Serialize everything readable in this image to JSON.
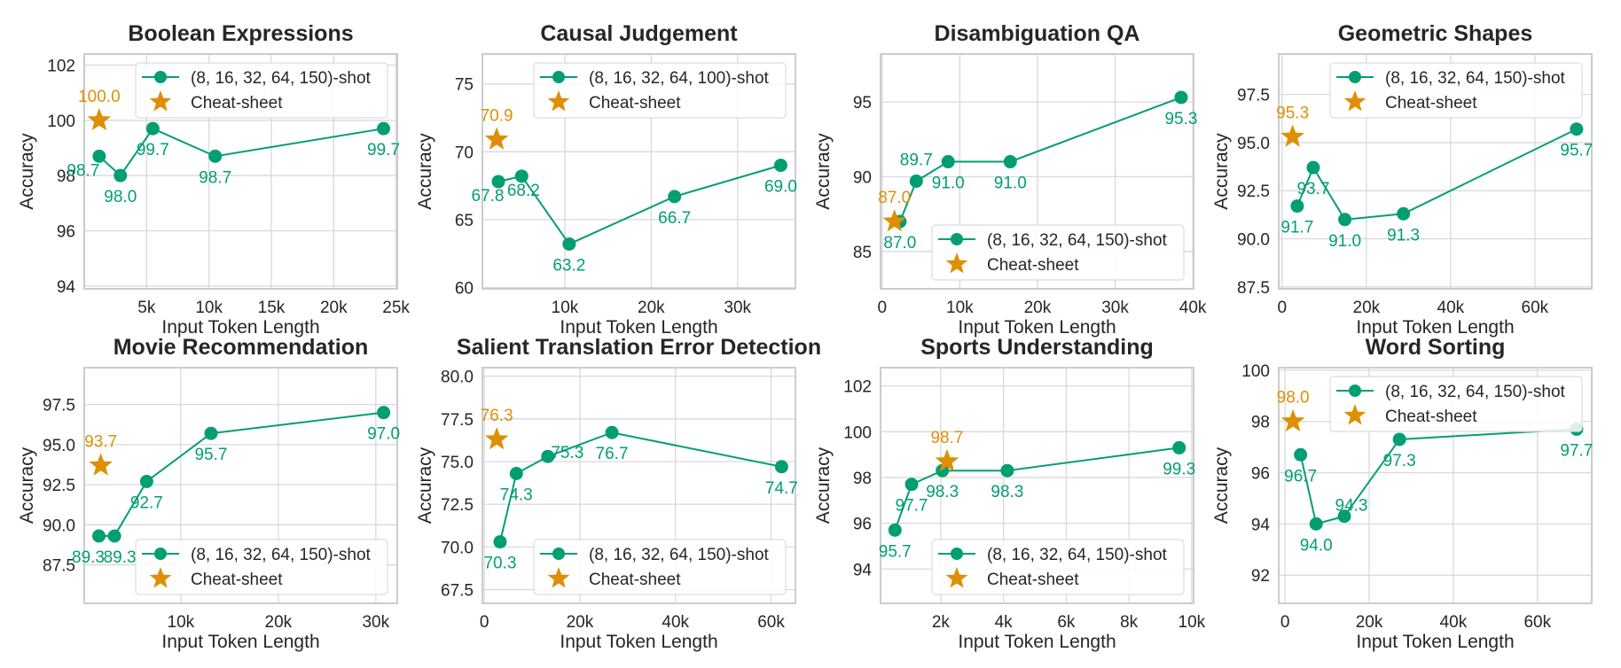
{
  "colors": {
    "series": "#029e73",
    "cheatsheet": "#de8f05",
    "grid": "#d9d9d9",
    "frame": "#cccccc",
    "text": "#262626"
  },
  "chart_data": [
    {
      "type": "line",
      "title": "Boolean Expressions",
      "xlabel": "Input Token Length",
      "ylabel": "Accuracy",
      "xlim": [
        0,
        25100
      ],
      "ylim": [
        93.9,
        102.4
      ],
      "xticks": [
        5000,
        10000,
        15000,
        20000,
        25000
      ],
      "xtick_labels": [
        "5k",
        "10k",
        "15k",
        "20k",
        "25k"
      ],
      "yticks": [
        94,
        96,
        98,
        100,
        102
      ],
      "ytick_labels": [
        "94",
        "96",
        "98",
        "100",
        "102"
      ],
      "grid": true,
      "legend": "upper-right",
      "series": [
        {
          "name": "(8, 16, 32, 64, 150)-shot",
          "x": [
            1200,
            2900,
            5500,
            10500,
            24000
          ],
          "y": [
            98.7,
            98.0,
            99.7,
            98.7,
            99.7
          ],
          "labels": [
            "98.7",
            "98.0",
            "99.7",
            "98.7",
            "99.7"
          ]
        }
      ],
      "cheatsheet": {
        "name": "Cheat-sheet",
        "x": 1200,
        "y": 100.0,
        "label": "100.0"
      }
    },
    {
      "type": "line",
      "title": "Causal Judgement",
      "xlabel": "Input Token Length",
      "ylabel": "Accuracy",
      "xlim": [
        450,
        36700
      ],
      "ylim": [
        59.9,
        77.2
      ],
      "xticks": [
        10000,
        20000,
        30000
      ],
      "xtick_labels": [
        "10k",
        "20k",
        "30k"
      ],
      "yticks": [
        60,
        65,
        70,
        75
      ],
      "ytick_labels": [
        "60",
        "65",
        "70",
        "75"
      ],
      "grid": true,
      "legend": "upper-right",
      "series": [
        {
          "name": "(8, 16, 32, 64, 100)-shot",
          "x": [
            2300,
            5000,
            10500,
            22700,
            35000
          ],
          "y": [
            67.8,
            68.2,
            63.2,
            66.7,
            69.0
          ],
          "labels": [
            "67.8",
            "68.2",
            "63.2",
            "66.7",
            "69.0"
          ]
        }
      ],
      "cheatsheet": {
        "name": "Cheat-sheet",
        "x": 2100,
        "y": 70.9,
        "label": "70.9"
      }
    },
    {
      "type": "line",
      "title": "Disambiguation QA",
      "xlabel": "Input Token Length",
      "ylabel": "Accuracy",
      "xlim": [
        -200,
        40100
      ],
      "ylim": [
        82.5,
        98.2
      ],
      "xticks": [
        0,
        10000,
        20000,
        30000,
        40000
      ],
      "xtick_labels": [
        "0",
        "10k",
        "20k",
        "30k",
        "40k"
      ],
      "yticks": [
        85,
        90,
        95
      ],
      "ytick_labels": [
        "85",
        "90",
        "95"
      ],
      "grid": true,
      "legend": "lower-right",
      "series": [
        {
          "name": "(8, 16, 32, 64, 150)-shot",
          "x": [
            2300,
            4400,
            8500,
            16500,
            38500
          ],
          "y": [
            87.0,
            89.7,
            91.0,
            91.0,
            95.3
          ],
          "labels": [
            "87.0",
            "89.7",
            "91.0",
            "91.0",
            "95.3"
          ]
        }
      ],
      "cheatsheet": {
        "name": "Cheat-sheet",
        "x": 1600,
        "y": 87.0,
        "label": "87.0"
      }
    },
    {
      "type": "line",
      "title": "Geometric Shapes",
      "xlabel": "Input Token Length",
      "ylabel": "Accuracy",
      "xlim": [
        -800,
        73500
      ],
      "ylim": [
        87.4,
        99.6
      ],
      "xticks": [
        0,
        20000,
        40000,
        60000
      ],
      "xtick_labels": [
        "0",
        "20k",
        "40k",
        "60k"
      ],
      "yticks": [
        87.5,
        90.0,
        92.5,
        95.0,
        97.5
      ],
      "ytick_labels": [
        "87.5",
        "90.0",
        "92.5",
        "95.0",
        "97.5"
      ],
      "grid": true,
      "legend": "upper-right",
      "series": [
        {
          "name": "(8, 16, 32, 64, 150)-shot",
          "x": [
            3600,
            7400,
            14900,
            28800,
            69900
          ],
          "y": [
            91.7,
            93.7,
            91.0,
            91.3,
            95.7
          ],
          "labels": [
            "91.7",
            "93.7",
            "91.0",
            "91.3",
            "95.7"
          ]
        }
      ],
      "cheatsheet": {
        "name": "Cheat-sheet",
        "x": 2500,
        "y": 95.3,
        "label": "95.3"
      }
    },
    {
      "type": "line",
      "title": "Movie Recommendation",
      "xlabel": "Input Token Length",
      "ylabel": "Accuracy",
      "xlim": [
        100,
        32200
      ],
      "ylim": [
        85.1,
        99.8
      ],
      "xticks": [
        10000,
        20000,
        30000
      ],
      "xtick_labels": [
        "10k",
        "20k",
        "30k"
      ],
      "yticks": [
        87.5,
        90.0,
        92.5,
        95.0,
        97.5
      ],
      "ytick_labels": [
        "87.5",
        "90.0",
        "92.5",
        "95.0",
        "97.5"
      ],
      "grid": true,
      "legend": "lower-right",
      "series": [
        {
          "name": "(8, 16, 32, 64, 150)-shot",
          "x": [
            1600,
            3200,
            6500,
            13100,
            30800
          ],
          "y": [
            89.3,
            89.3,
            92.7,
            95.7,
            97.0
          ],
          "labels": [
            "89.3",
            "89.3",
            "92.7",
            "95.7",
            "97.0"
          ]
        }
      ],
      "cheatsheet": {
        "name": "Cheat-sheet",
        "x": 1800,
        "y": 93.7,
        "label": "93.7"
      }
    },
    {
      "type": "line",
      "title": "Salient Translation Error Detection",
      "xlabel": "Input Token Length",
      "ylabel": "Accuracy",
      "xlim": [
        -400,
        65100
      ],
      "ylim": [
        66.7,
        80.5
      ],
      "xticks": [
        0,
        20000,
        40000,
        60000
      ],
      "xtick_labels": [
        "0",
        "20k",
        "40k",
        "60k"
      ],
      "yticks": [
        67.5,
        70.0,
        72.5,
        75.0,
        77.5,
        80.0
      ],
      "ytick_labels": [
        "67.5",
        "70.0",
        "72.5",
        "75.0",
        "77.5",
        "80.0"
      ],
      "grid": true,
      "legend": "lower-right",
      "series": [
        {
          "name": "(8, 16, 32, 64, 150)-shot",
          "x": [
            3300,
            6700,
            13300,
            26700,
            62200
          ],
          "y": [
            70.3,
            74.3,
            75.3,
            76.7,
            74.7
          ],
          "labels": [
            "70.3",
            "74.3",
            "75.3",
            "76.7",
            "74.7"
          ]
        }
      ],
      "cheatsheet": {
        "name": "Cheat-sheet",
        "x": 2600,
        "y": 76.3,
        "label": "76.3"
      }
    },
    {
      "type": "line",
      "title": "Sports Understanding",
      "xlabel": "Input Token Length",
      "ylabel": "Accuracy",
      "xlim": [
        80,
        10060
      ],
      "ylim": [
        92.5,
        102.8
      ],
      "xticks": [
        2000,
        4000,
        6000,
        8000,
        10000
      ],
      "xtick_labels": [
        "2k",
        "4k",
        "6k",
        "8k",
        "10k"
      ],
      "yticks": [
        94,
        96,
        98,
        100,
        102
      ],
      "ytick_labels": [
        "94",
        "96",
        "98",
        "100",
        "102"
      ],
      "grid": true,
      "legend": "lower-right",
      "series": [
        {
          "name": "(8, 16, 32, 64, 150)-shot",
          "x": [
            540,
            1070,
            2050,
            4120,
            9600
          ],
          "y": [
            95.7,
            97.7,
            98.3,
            98.3,
            99.3
          ],
          "labels": [
            "95.7",
            "97.7",
            "98.3",
            "98.3",
            "99.3"
          ]
        }
      ],
      "cheatsheet": {
        "name": "Cheat-sheet",
        "x": 2200,
        "y": 98.7,
        "label": "98.7"
      }
    },
    {
      "type": "line",
      "title": "Word Sorting",
      "xlabel": "Input Token Length",
      "ylabel": "Accuracy",
      "xlim": [
        -1500,
        72900
      ],
      "ylim": [
        90.9,
        100.1
      ],
      "xticks": [
        0,
        20000,
        40000,
        60000
      ],
      "xtick_labels": [
        "0",
        "20k",
        "40k",
        "60k"
      ],
      "yticks": [
        92,
        94,
        96,
        98,
        100
      ],
      "ytick_labels": [
        "92",
        "94",
        "96",
        "98",
        "100"
      ],
      "grid": true,
      "legend": "upper-right",
      "series": [
        {
          "name": "(8, 16, 32, 64, 150)-shot",
          "x": [
            3700,
            7400,
            14100,
            27200,
            69300
          ],
          "y": [
            96.7,
            94.0,
            94.3,
            97.3,
            97.7
          ],
          "labels": [
            "96.7",
            "94.0",
            "94.3",
            "97.3",
            "97.7"
          ]
        }
      ],
      "cheatsheet": {
        "name": "Cheat-sheet",
        "x": 1900,
        "y": 98.0,
        "label": "98.0"
      }
    }
  ]
}
